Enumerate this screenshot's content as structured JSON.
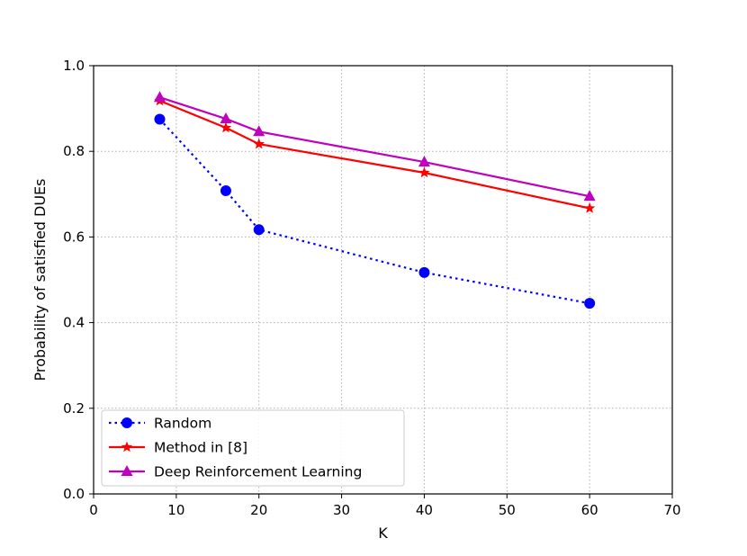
{
  "chart_data": {
    "type": "line",
    "xlabel": "K",
    "ylabel": "Probability of satisfied DUEs",
    "xlim": [
      0,
      70
    ],
    "ylim": [
      0.0,
      1.0
    ],
    "xticks": [
      "0",
      "10",
      "20",
      "30",
      "40",
      "50",
      "60",
      "70"
    ],
    "yticks": [
      "0.0",
      "0.2",
      "0.4",
      "0.6",
      "0.8",
      "1.0"
    ],
    "grid": true,
    "legend_position": "lower-left",
    "x": [
      8,
      16,
      20,
      40,
      60
    ],
    "series": [
      {
        "name": "Random",
        "values": [
          0.875,
          0.708,
          0.617,
          0.517,
          0.445
        ],
        "color": "#0000ff",
        "marker": "circle",
        "linestyle": "dotted"
      },
      {
        "name": "Method in [8]",
        "values": [
          0.918,
          0.855,
          0.817,
          0.75,
          0.667
        ],
        "color": "#ff0000",
        "marker": "star",
        "linestyle": "solid"
      },
      {
        "name": "Deep Reinforcement Learning",
        "values": [
          0.926,
          0.876,
          0.846,
          0.775,
          0.695
        ],
        "color": "#bf00bf",
        "marker": "triangle",
        "linestyle": "solid"
      }
    ]
  }
}
